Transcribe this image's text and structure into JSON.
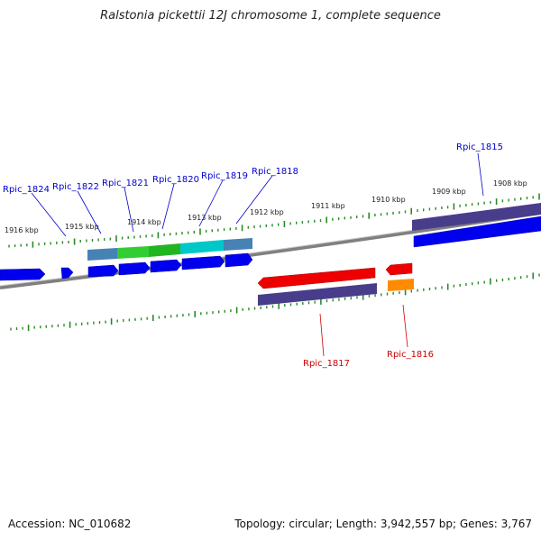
{
  "title": "Ralstonia pickettii 12J chromosome 1, complete sequence",
  "footer": {
    "accession": "Accession: NC_010682",
    "summary": "Topology: circular; Length: 3,942,557 bp; Genes: 3,767"
  },
  "colors": {
    "forward_label": "#0000cc",
    "reverse_label": "#cc0000",
    "tick": "#2a8a2a",
    "backbone": "#808080"
  },
  "kbp_labels": [
    "1916 kbp",
    "1915 kbp",
    "1914 kbp",
    "1913 kbp",
    "1912 kbp",
    "1911 kbp",
    "1910 kbp",
    "1909 kbp",
    "1908 kbp"
  ],
  "gene_labels": {
    "forward": [
      "Rpic_1824",
      "Rpic_1822",
      "Rpic_1821",
      "Rpic_1820",
      "Rpic_1819",
      "Rpic_1818",
      "Rpic_1815"
    ],
    "reverse": [
      "Rpic_1817",
      "Rpic_1816"
    ]
  }
}
